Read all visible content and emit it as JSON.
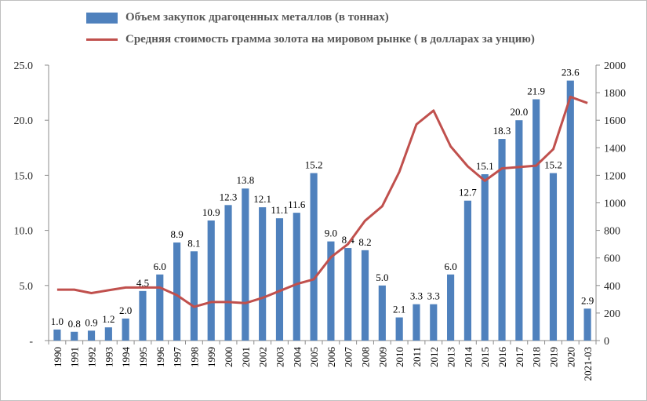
{
  "chart_data": {
    "type": "bar+line",
    "categories": [
      "1990",
      "1991",
      "1992",
      "1993",
      "1994",
      "1995",
      "1996",
      "1997",
      "1998",
      "1999",
      "2000",
      "2001",
      "2002",
      "2003",
      "2004",
      "2005",
      "2006",
      "2007",
      "2008",
      "2009",
      "2010",
      "2011",
      "2012",
      "2013",
      "2014",
      "2015",
      "2016",
      "2017",
      "2018",
      "2019",
      "2020",
      "2021-03"
    ],
    "series": [
      {
        "name": "Объем закупок драгоценных металлов (в тоннах)",
        "type": "bar",
        "axis": "left",
        "color": "#4f81bd",
        "values": [
          1.0,
          0.8,
          0.9,
          1.2,
          2.0,
          4.5,
          6.0,
          8.9,
          8.1,
          10.9,
          12.3,
          13.8,
          12.1,
          11.1,
          11.6,
          15.2,
          9.0,
          8.4,
          8.2,
          5.0,
          2.1,
          3.3,
          3.3,
          6.0,
          12.7,
          15.1,
          18.3,
          20.0,
          21.9,
          15.2,
          23.6,
          2.9
        ],
        "labels": [
          "1.0",
          "0.8",
          "0.9",
          "1.2",
          "2.0",
          "4.5",
          "6.0",
          "8.9",
          "8.1",
          "10.9",
          "12.3",
          "13.8",
          "12.1",
          "11.1",
          "11.6",
          "15.2",
          "9.0",
          "8.4",
          "8.2",
          "5.0",
          "2.1",
          "3.3",
          "3.3",
          "6.0",
          "12.7",
          "15.1",
          "18.3",
          "20.0",
          "21.9",
          "15.2",
          "23.6",
          "2.9"
        ]
      },
      {
        "name": "Средняя стоимость грамма золота на мировом рынке ( в долларах за унцию)",
        "type": "line",
        "axis": "right",
        "color": "#c0504d",
        "values": [
          370,
          370,
          345,
          365,
          385,
          385,
          385,
          330,
          245,
          280,
          280,
          272,
          310,
          360,
          410,
          445,
          605,
          700,
          870,
          975,
          1225,
          1570,
          1670,
          1410,
          1265,
          1160,
          1250,
          1260,
          1270,
          1390,
          1770,
          1725
        ]
      }
    ],
    "y_left": {
      "min": 0,
      "max": 25,
      "ticks": [
        "-",
        "5.0",
        "10.0",
        "15.0",
        "20.0",
        "25.0"
      ]
    },
    "y_right": {
      "min": 0,
      "max": 2000,
      "ticks": [
        "0",
        "200",
        "400",
        "600",
        "800",
        "1000",
        "1200",
        "1400",
        "1600",
        "1800",
        "2000"
      ]
    },
    "grid": false,
    "legend_position": "top-left"
  }
}
